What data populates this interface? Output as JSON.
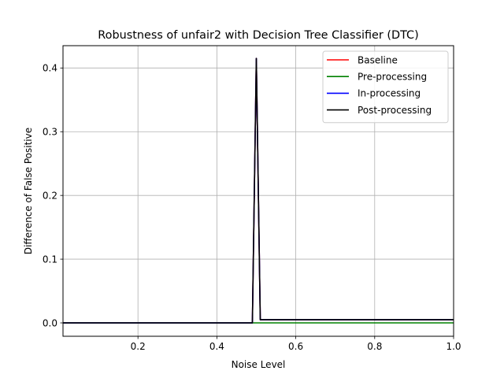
{
  "chart_data": {
    "type": "line",
    "title": "Robustness of unfair2 with Decision Tree Classifier (DTC)",
    "xlabel": "Noise Level",
    "ylabel": "Difference of False Positive",
    "xlim": [
      0.01,
      1.0
    ],
    "ylim": [
      -0.021,
      0.435
    ],
    "xticks": [
      0.2,
      0.4,
      0.6,
      0.8,
      1.0
    ],
    "xtick_labels": [
      "0.2",
      "0.4",
      "0.6",
      "0.8",
      "1.0"
    ],
    "yticks": [
      0.0,
      0.1,
      0.2,
      0.3,
      0.4
    ],
    "ytick_labels": [
      "0.0",
      "0.1",
      "0.2",
      "0.3",
      "0.4"
    ],
    "grid": true,
    "legend_position": "top-right",
    "series": [
      {
        "name": "Baseline",
        "color": "#ff0000",
        "x": [
          0.01,
          0.49,
          0.5,
          0.51,
          1.0
        ],
        "y": [
          0.0,
          0.0,
          0.415,
          0.005,
          0.005
        ]
      },
      {
        "name": "Pre-processing",
        "color": "#008000",
        "x": [
          0.01,
          0.49,
          0.5,
          0.51,
          1.0
        ],
        "y": [
          0.0,
          0.0,
          0.0,
          0.0,
          0.0
        ]
      },
      {
        "name": "In-processing",
        "color": "#0000ff",
        "x": [
          0.01,
          0.49,
          0.5,
          0.51,
          1.0
        ],
        "y": [
          0.0,
          0.0,
          0.415,
          0.005,
          0.005
        ]
      },
      {
        "name": "Post-processing",
        "color": "#000000",
        "x": [
          0.01,
          0.49,
          0.5,
          0.51,
          1.0
        ],
        "y": [
          0.0,
          0.0,
          0.415,
          0.005,
          0.005
        ]
      }
    ]
  }
}
